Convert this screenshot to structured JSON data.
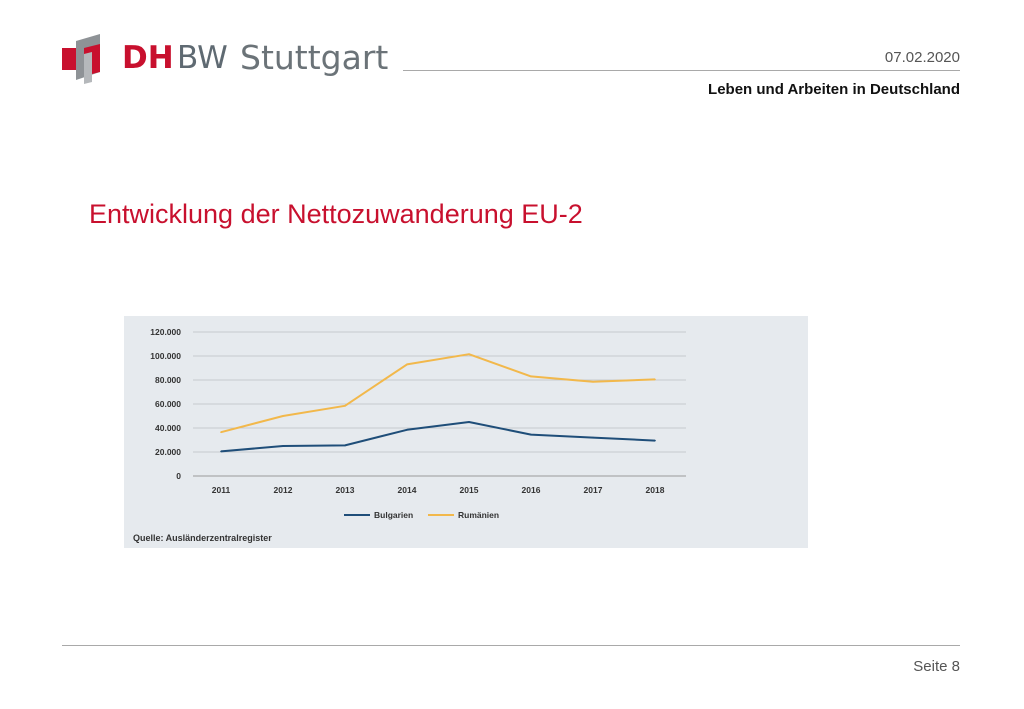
{
  "header": {
    "logo": {
      "text_bold": "DH",
      "text_regular": "BW",
      "city": "Stuttgart"
    },
    "date": "07.02.2020",
    "subtitle": "Leben und Arbeiten in Deutschland"
  },
  "slide": {
    "title": "Entwicklung der Nettozuwanderung EU-2"
  },
  "chart_data": {
    "type": "line",
    "title": "",
    "xlabel": "",
    "ylabel": "",
    "x": [
      "2011",
      "2012",
      "2013",
      "2014",
      "2015",
      "2016",
      "2017",
      "2018"
    ],
    "ylim": [
      0,
      120000
    ],
    "yticks": [
      0,
      20000,
      40000,
      60000,
      80000,
      100000,
      120000
    ],
    "ytick_labels": [
      "0",
      "20.000",
      "40.000",
      "60.000",
      "80.000",
      "100.000",
      "120.000"
    ],
    "grid": true,
    "legend_position": "bottom-center",
    "series": [
      {
        "name": "Bulgarien",
        "color": "#1f4e79",
        "values": [
          20500,
          25000,
          25500,
          38500,
          45000,
          34500,
          32000,
          29500
        ]
      },
      {
        "name": "Rumänien",
        "color": "#f2b84b",
        "values": [
          36500,
          50000,
          58500,
          93000,
          101500,
          83000,
          78500,
          80500
        ]
      }
    ],
    "source": "Quelle: Ausländerzentralregister"
  },
  "footer": {
    "page": "Seite 8"
  }
}
